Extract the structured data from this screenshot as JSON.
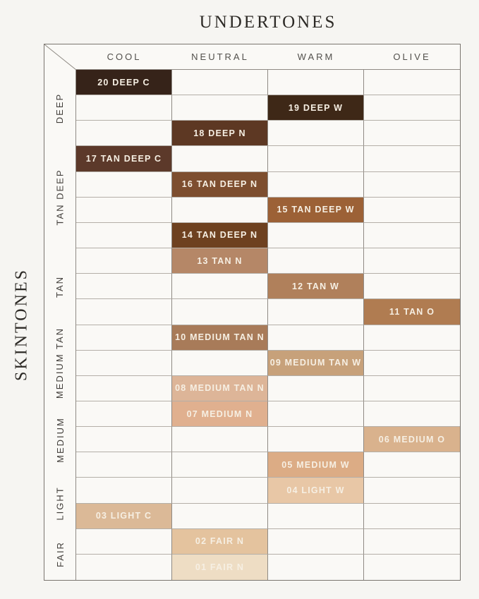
{
  "chart_data": {
    "type": "heatmap",
    "title": "UNDERTONES",
    "row_axis_label": "SKINTONES",
    "columns": [
      "COOL",
      "NEUTRAL",
      "WARM",
      "OLIVE"
    ],
    "row_groups": [
      {
        "label": "DEEP",
        "rows": 3
      },
      {
        "label": "TAN DEEP",
        "rows": 4
      },
      {
        "label": "TAN",
        "rows": 3
      },
      {
        "label": "MEDIUM TAN",
        "rows": 3
      },
      {
        "label": "MEDIUM",
        "rows": 3
      },
      {
        "label": "LIGHT",
        "rows": 2
      },
      {
        "label": "FAIR",
        "rows": 2
      }
    ],
    "cells": [
      {
        "row": 1,
        "column": "COOL",
        "label": "20 DEEP C",
        "color": "#362319"
      },
      {
        "row": 2,
        "column": "WARM",
        "label": "19 DEEP W",
        "color": "#3E2817"
      },
      {
        "row": 3,
        "column": "NEUTRAL",
        "label": "18 DEEP N",
        "color": "#5D3823"
      },
      {
        "row": 4,
        "column": "COOL",
        "label": "17 TAN DEEP C",
        "color": "#5C392A"
      },
      {
        "row": 5,
        "column": "NEUTRAL",
        "label": "16 TAN DEEP N",
        "color": "#7D4E2F"
      },
      {
        "row": 6,
        "column": "WARM",
        "label": "15 TAN DEEP W",
        "color": "#9C6136"
      },
      {
        "row": 7,
        "column": "NEUTRAL",
        "label": "14 TAN DEEP N",
        "color": "#6E4120"
      },
      {
        "row": 8,
        "column": "NEUTRAL",
        "label": "13 TAN N",
        "color": "#B58767"
      },
      {
        "row": 9,
        "column": "WARM",
        "label": "12 TAN W",
        "color": "#B0805B"
      },
      {
        "row": 10,
        "column": "OLIVE",
        "label": "11 TAN O",
        "color": "#B07C51"
      },
      {
        "row": 11,
        "column": "NEUTRAL",
        "label": "10 MEDIUM TAN N",
        "color": "#A87B59"
      },
      {
        "row": 12,
        "column": "WARM",
        "label": "09 MEDIUM TAN W",
        "color": "#C7A17A"
      },
      {
        "row": 13,
        "column": "NEUTRAL",
        "label": "08 MEDIUM TAN N",
        "color": "#DDB598"
      },
      {
        "row": 14,
        "column": "NEUTRAL",
        "label": "07 MEDIUM N",
        "color": "#E0B08F"
      },
      {
        "row": 15,
        "column": "OLIVE",
        "label": "06 MEDIUM O",
        "color": "#D9B28D"
      },
      {
        "row": 16,
        "column": "WARM",
        "label": "05 MEDIUM W",
        "color": "#DCAC85"
      },
      {
        "row": 17,
        "column": "WARM",
        "label": "04 LIGHT W",
        "color": "#E8C7A6"
      },
      {
        "row": 18,
        "column": "COOL",
        "label": "03 LIGHT C",
        "color": "#DBB997"
      },
      {
        "row": 19,
        "column": "NEUTRAL",
        "label": "02 FAIR N",
        "color": "#E4C39E"
      },
      {
        "row": 20,
        "column": "NEUTRAL",
        "label": "01 FAIR N",
        "color": "#EEDDC4"
      }
    ],
    "grid": "on",
    "legend": "none",
    "palette": {
      "page_bg": "#F6F5F2",
      "cell_bg": "#FAF9F6",
      "outer_border": "#7A756F",
      "grid_line_vertical": "#8F8A84",
      "grid_line_horizontal": "#B4AFA8",
      "title_color": "#2D2A26",
      "header_color": "#52504C",
      "group_label_color": "#413E3A",
      "swatch_text_color": "#F6EFE3"
    }
  }
}
